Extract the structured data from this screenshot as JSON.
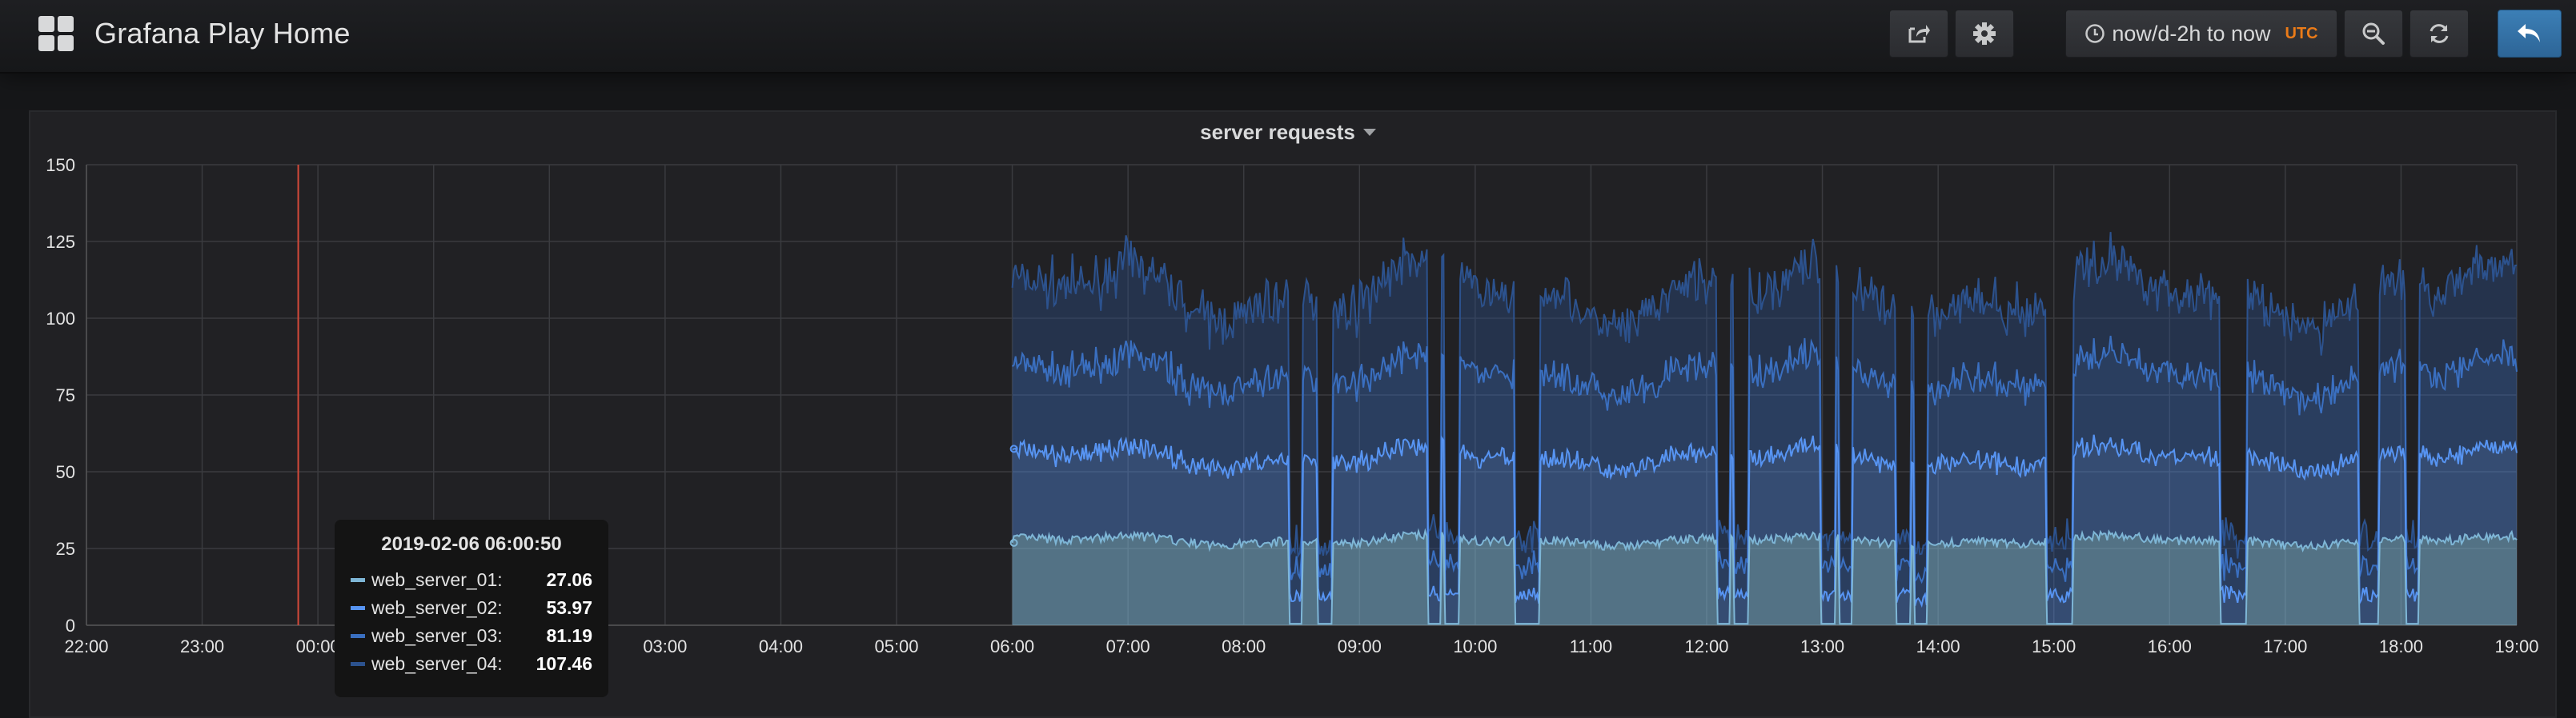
{
  "app": {
    "title": "Grafana Play Home",
    "time_range": "now/d-2h to now",
    "timezone": "UTC"
  },
  "icons": {
    "logo": "dashboard-grid-icon",
    "share": "share-icon",
    "settings": "gear-icon",
    "time": "clock-icon",
    "zoom_out": "zoom-out-icon",
    "refresh": "refresh-icon",
    "back": "back-arrow-icon"
  },
  "colors": {
    "background": "#161719",
    "panel": "#212124",
    "accent": "#3274d9",
    "annotation": "#d44a3a",
    "utc": "#eb7b18"
  },
  "panel": {
    "title": "server requests"
  },
  "tooltip": {
    "time": "2019-02-06 06:00:50",
    "rows": [
      {
        "name": "web_server_01:",
        "value": "27.06",
        "color": "#7eb6d6"
      },
      {
        "name": "web_server_02:",
        "value": "53.97",
        "color": "#5794f2"
      },
      {
        "name": "web_server_03:",
        "value": "81.19",
        "color": "#3a6fc0"
      },
      {
        "name": "web_server_04:",
        "value": "107.46",
        "color": "#2c528e"
      }
    ]
  },
  "chart_data": {
    "type": "area",
    "stacked": true,
    "y_ticks": [
      "0",
      "25",
      "50",
      "75",
      "100",
      "125",
      "150"
    ],
    "ylim": [
      0,
      150
    ],
    "x_ticks": [
      "22:00",
      "23:00",
      "00:00",
      "01:00",
      "02:00",
      "03:00",
      "04:00",
      "05:00",
      "06:00",
      "07:00",
      "08:00",
      "09:00",
      "10:00",
      "11:00",
      "12:00",
      "13:00",
      "14:00",
      "15:00",
      "16:00",
      "17:00",
      "18:00",
      "19:00"
    ],
    "xlim_hours": [
      22,
      43.0
    ],
    "data_start_hour": 30,
    "annotation_hour": 23.83,
    "grid": true,
    "series": [
      {
        "name": "web_server_01",
        "color": "#7eb6d6",
        "base": 27.5
      },
      {
        "name": "web_server_02",
        "color": "#5794f2",
        "base": 27.0
      },
      {
        "name": "web_server_03",
        "color": "#3a6fc0",
        "base": 27.0
      },
      {
        "name": "web_server_04",
        "color": "#2c528e",
        "base": 26.5
      }
    ],
    "dips_hours": [
      32.45,
      32.7,
      33.65,
      33.8,
      34.4,
      34.5,
      36.15,
      36.3,
      37.05,
      37.2,
      37.7,
      37.85,
      39.0,
      39.1,
      40.5,
      40.6,
      41.7,
      41.75,
      42.1
    ]
  }
}
